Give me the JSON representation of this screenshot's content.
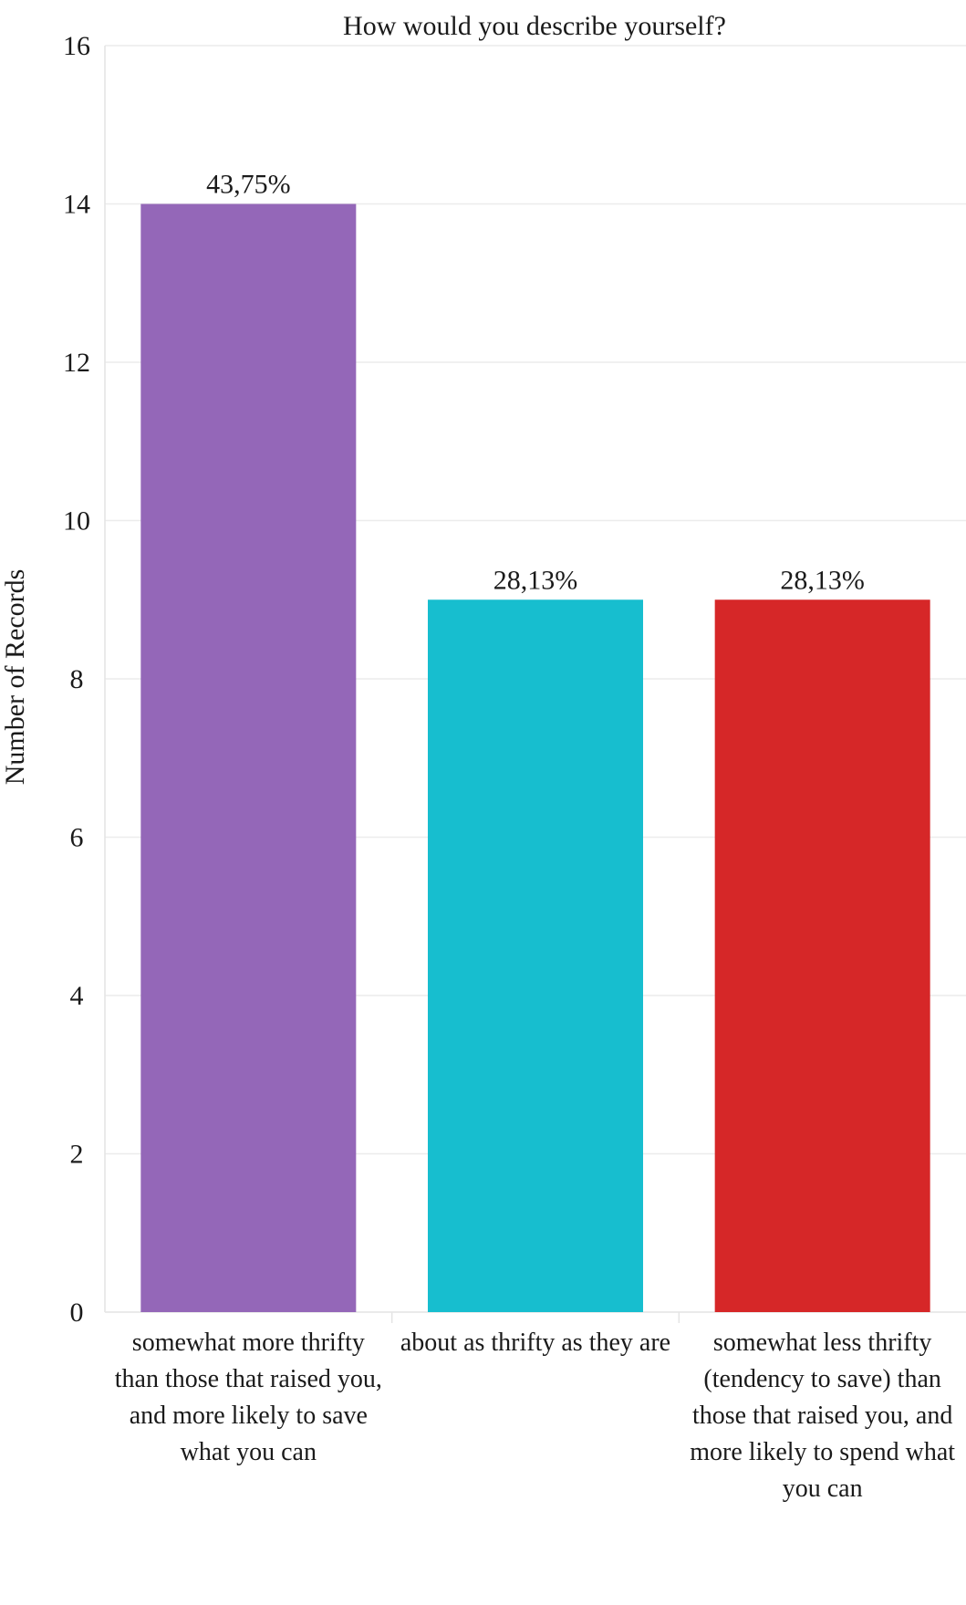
{
  "chart_data": {
    "type": "bar",
    "title": "How would you describe yourself?",
    "xlabel": "",
    "ylabel": "Number of Records",
    "ylim": [
      0,
      16
    ],
    "yticks": [
      0,
      2,
      4,
      6,
      8,
      10,
      12,
      14,
      16
    ],
    "grid": true,
    "categories": [
      "somewhat more thrifty than those that raised you, and more likely to save what you can",
      "about as thrifty as they are",
      "somewhat less thrifty (tendency to save) than those that raised you, and more likely to spend what you can"
    ],
    "values": [
      14,
      9,
      9
    ],
    "data_labels": [
      "43,75%",
      "28,13%",
      "28,13%"
    ],
    "colors": [
      "#9467b8",
      "#17becf",
      "#d62728"
    ]
  }
}
